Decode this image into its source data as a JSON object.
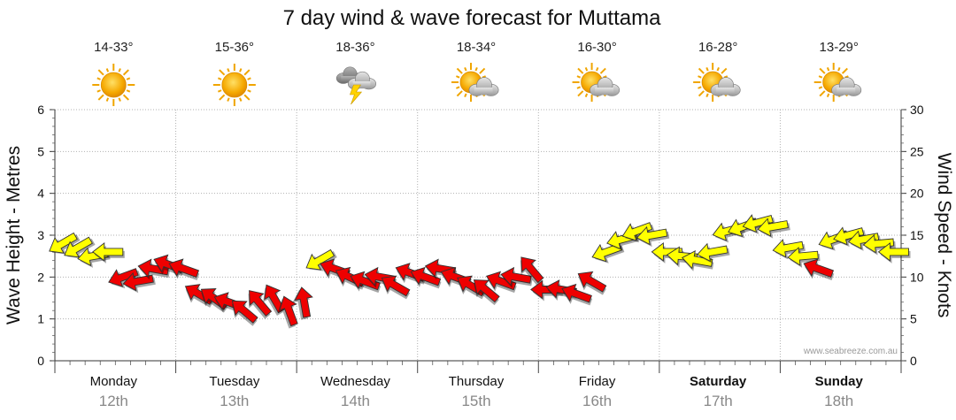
{
  "chart_data": {
    "type": "line",
    "title": "7 day wind & wave forecast for Muttama",
    "ylabel_left": "Wave Height - Metres",
    "ylabel_right": "Wind Speed - Knots",
    "ylim_left": [
      0,
      6
    ],
    "ylim_right": [
      0,
      30
    ],
    "yticks_left": [
      "0",
      "1",
      "2",
      "3",
      "4",
      "5",
      "6"
    ],
    "yticks_right": [
      "0",
      "5",
      "10",
      "15",
      "20",
      "25",
      "30"
    ],
    "grid": true,
    "watermark": "www.seabreeze.com.au",
    "colors": {
      "strong": "#ee0000",
      "light": "#ffff00",
      "outline": "#333333"
    },
    "days": [
      {
        "name": "Monday",
        "date": "12th",
        "bold": false,
        "temp": "14-33°",
        "icon": "sun-icon"
      },
      {
        "name": "Tuesday",
        "date": "13th",
        "bold": false,
        "temp": "15-36°",
        "icon": "sun-icon"
      },
      {
        "name": "Wednesday",
        "date": "14th",
        "bold": false,
        "temp": "18-36°",
        "icon": "storm-cloud-icon"
      },
      {
        "name": "Thursday",
        "date": "15th",
        "bold": false,
        "temp": "18-34°",
        "icon": "partly-cloudy-icon"
      },
      {
        "name": "Friday",
        "date": "16th",
        "bold": false,
        "temp": "16-30°",
        "icon": "partly-cloudy-icon"
      },
      {
        "name": "Saturday",
        "date": "17th",
        "bold": true,
        "temp": "16-28°",
        "icon": "partly-cloudy-icon"
      },
      {
        "name": "Sunday",
        "date": "18th",
        "bold": true,
        "temp": "13-29°",
        "icon": "partly-cloudy-icon"
      }
    ],
    "wind_series": {
      "name": "Wind Speed",
      "x_unit": "hours from Monday 00:00",
      "points": [
        [
          0,
          14,
          150
        ],
        [
          3,
          13.5,
          150
        ],
        [
          6,
          12.5,
          170
        ],
        [
          9,
          13,
          180
        ],
        [
          12,
          10,
          160
        ],
        [
          15,
          9.5,
          170
        ],
        [
          18,
          11,
          190
        ],
        [
          21,
          11.5,
          200
        ],
        [
          24,
          11,
          200
        ],
        [
          27,
          8,
          210
        ],
        [
          30,
          7.5,
          215
        ],
        [
          33,
          7,
          200
        ],
        [
          36,
          6,
          220
        ],
        [
          39,
          7,
          230
        ],
        [
          42,
          7.5,
          240
        ],
        [
          45,
          6,
          250
        ],
        [
          48,
          7,
          260
        ],
        [
          51,
          12,
          150
        ],
        [
          54,
          11,
          200
        ],
        [
          57,
          10,
          205
        ],
        [
          60,
          9.5,
          200
        ],
        [
          63,
          10,
          190
        ],
        [
          66,
          9,
          210
        ],
        [
          69,
          10.5,
          200
        ],
        [
          72,
          10,
          200
        ],
        [
          75,
          11,
          190
        ],
        [
          78,
          10,
          200
        ],
        [
          81,
          9,
          210
        ],
        [
          84,
          8.5,
          220
        ],
        [
          87,
          9.5,
          200
        ],
        [
          90,
          10,
          190
        ],
        [
          93,
          11,
          230
        ],
        [
          96,
          8.5,
          180
        ],
        [
          99,
          8.5,
          190
        ],
        [
          102,
          8,
          200
        ],
        [
          105,
          9.5,
          210
        ],
        [
          108,
          13,
          160
        ],
        [
          111,
          14.5,
          165
        ],
        [
          114,
          15.5,
          160
        ],
        [
          117,
          15,
          170
        ],
        [
          120,
          13,
          180
        ],
        [
          123,
          12.5,
          185
        ],
        [
          126,
          12,
          190
        ],
        [
          129,
          13,
          170
        ],
        [
          132,
          15.5,
          165
        ],
        [
          135,
          16,
          160
        ],
        [
          138,
          16.5,
          165
        ],
        [
          141,
          16,
          170
        ],
        [
          144,
          13.5,
          170
        ],
        [
          147,
          12.5,
          175
        ],
        [
          150,
          11,
          200
        ],
        [
          153,
          14.5,
          160
        ],
        [
          156,
          15,
          165
        ],
        [
          159,
          14.5,
          170
        ],
        [
          162,
          14,
          175
        ],
        [
          165,
          13,
          180
        ]
      ]
    }
  }
}
